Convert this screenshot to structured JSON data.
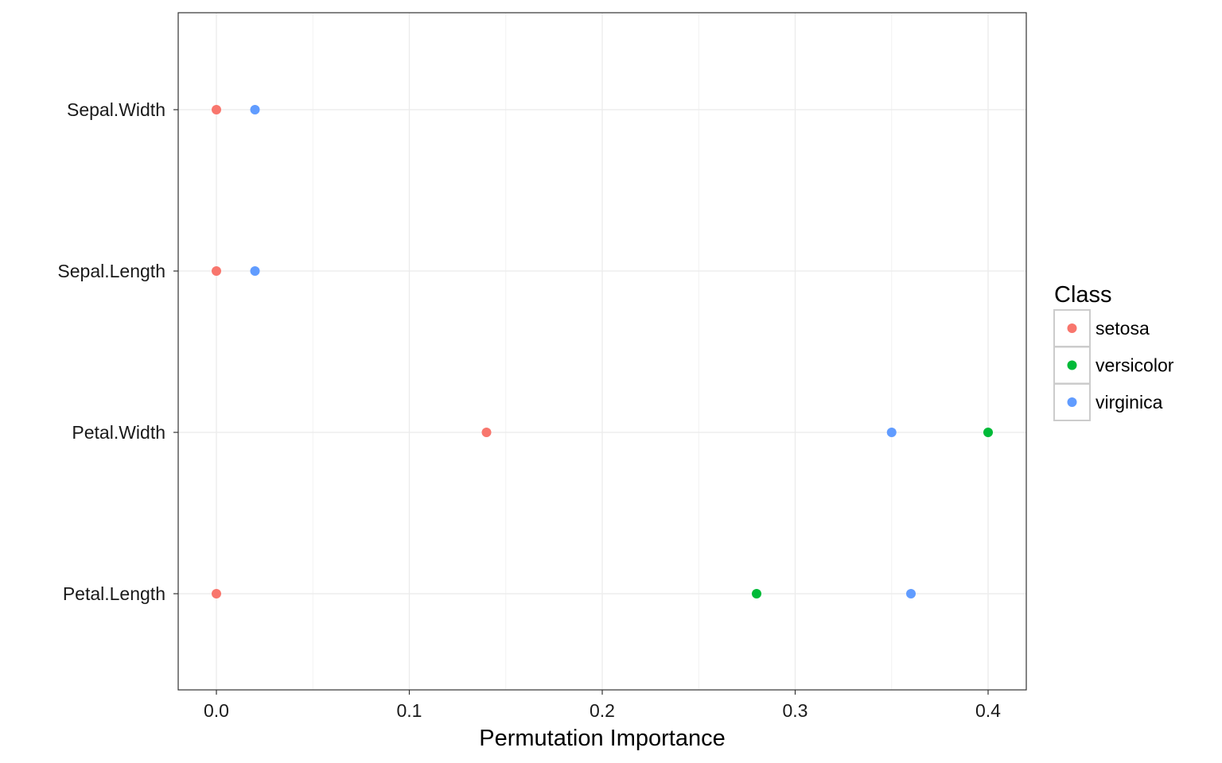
{
  "chart_data": {
    "type": "scatter",
    "title": "",
    "xlabel": "Permutation Importance",
    "ylabel": "",
    "xlim": [
      -0.02,
      0.42
    ],
    "x_ticks": [
      0.0,
      0.1,
      0.2,
      0.3,
      0.4
    ],
    "x_tick_labels": [
      "0.0",
      "0.1",
      "0.2",
      "0.3",
      "0.4"
    ],
    "categories": [
      "Petal.Length",
      "Petal.Width",
      "Sepal.Length",
      "Sepal.Width"
    ],
    "grid": true,
    "legend": {
      "title": "Class",
      "position": "right"
    },
    "series": [
      {
        "name": "setosa",
        "color": "#F8766D",
        "points": [
          {
            "y": "Sepal.Width",
            "x": 0.0
          },
          {
            "y": "Sepal.Length",
            "x": 0.0
          },
          {
            "y": "Petal.Width",
            "x": 0.14
          },
          {
            "y": "Petal.Length",
            "x": 0.0
          }
        ]
      },
      {
        "name": "versicolor",
        "color": "#00BA38",
        "points": [
          {
            "y": "Petal.Width",
            "x": 0.4
          },
          {
            "y": "Petal.Length",
            "x": 0.28
          }
        ]
      },
      {
        "name": "virginica",
        "color": "#619CFF",
        "points": [
          {
            "y": "Sepal.Width",
            "x": 0.02
          },
          {
            "y": "Sepal.Length",
            "x": 0.02
          },
          {
            "y": "Petal.Width",
            "x": 0.35
          },
          {
            "y": "Petal.Length",
            "x": 0.36
          }
        ]
      }
    ]
  }
}
